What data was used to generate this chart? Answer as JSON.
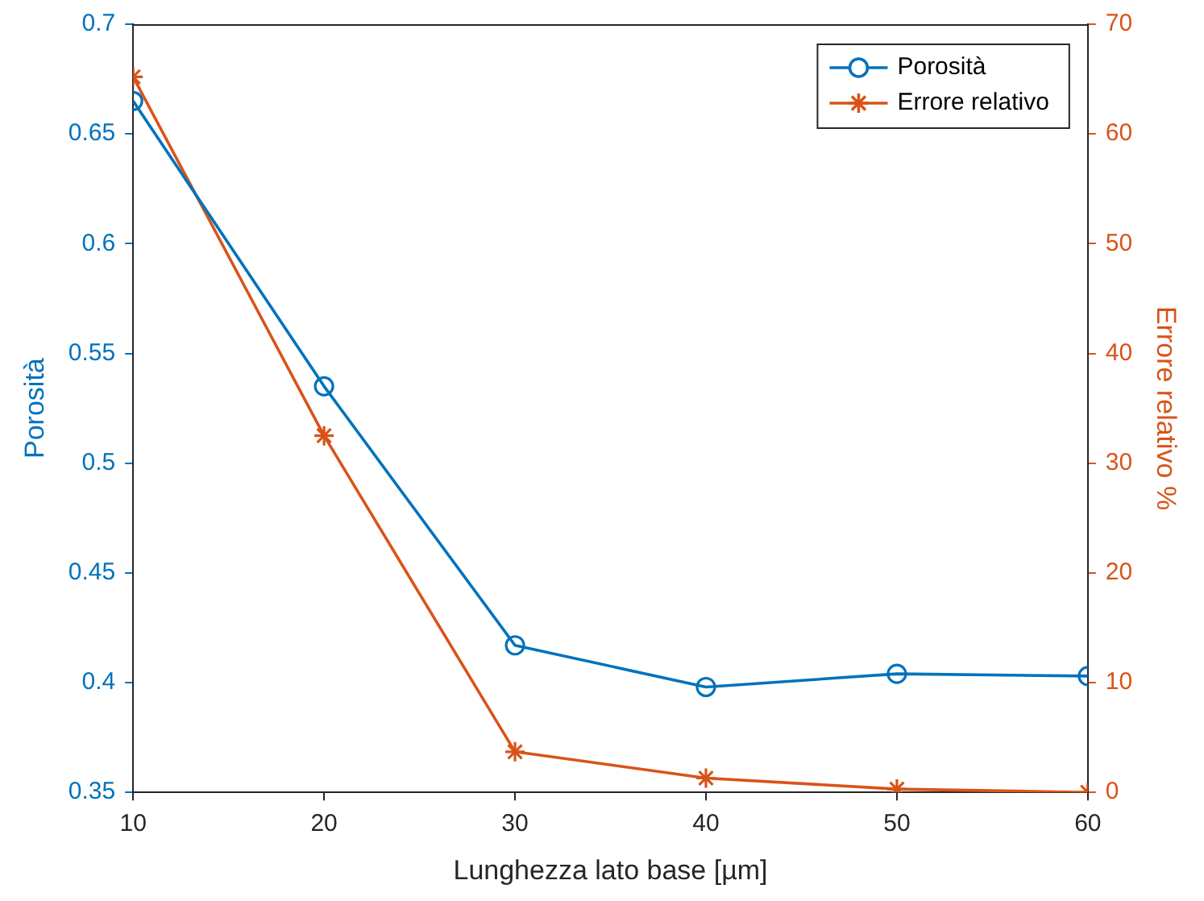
{
  "chart_data": {
    "type": "line",
    "xlabel": "Lunghezza lato base [µm]",
    "ylabel": "Porosità",
    "y2label": "Errore relativo %",
    "x": [
      10,
      20,
      30,
      40,
      50,
      60
    ],
    "series": [
      {
        "name": "Porosità",
        "color": "#0072bd",
        "marker": "circle",
        "values": [
          0.665,
          0.535,
          0.417,
          0.398,
          0.404,
          0.403
        ]
      },
      {
        "name": "Errore relativo",
        "color": "#d95319",
        "marker": "cross",
        "axis": "y2",
        "values": [
          65.2,
          32.5,
          3.7,
          1.3,
          0.3,
          0
        ]
      }
    ],
    "xlim": [
      10,
      60
    ],
    "xticks": [
      10,
      20,
      30,
      40,
      50,
      60
    ],
    "ylim": [
      0.35,
      0.7
    ],
    "yticks": [
      0.35,
      0.4,
      0.45,
      0.5,
      0.55,
      0.6,
      0.65,
      0.7
    ],
    "y2lim": [
      0,
      70
    ],
    "y2ticks": [
      0,
      10,
      20,
      30,
      40,
      50,
      60,
      70
    ],
    "grid": false,
    "legend": "top right",
    "line_style": "solid"
  }
}
